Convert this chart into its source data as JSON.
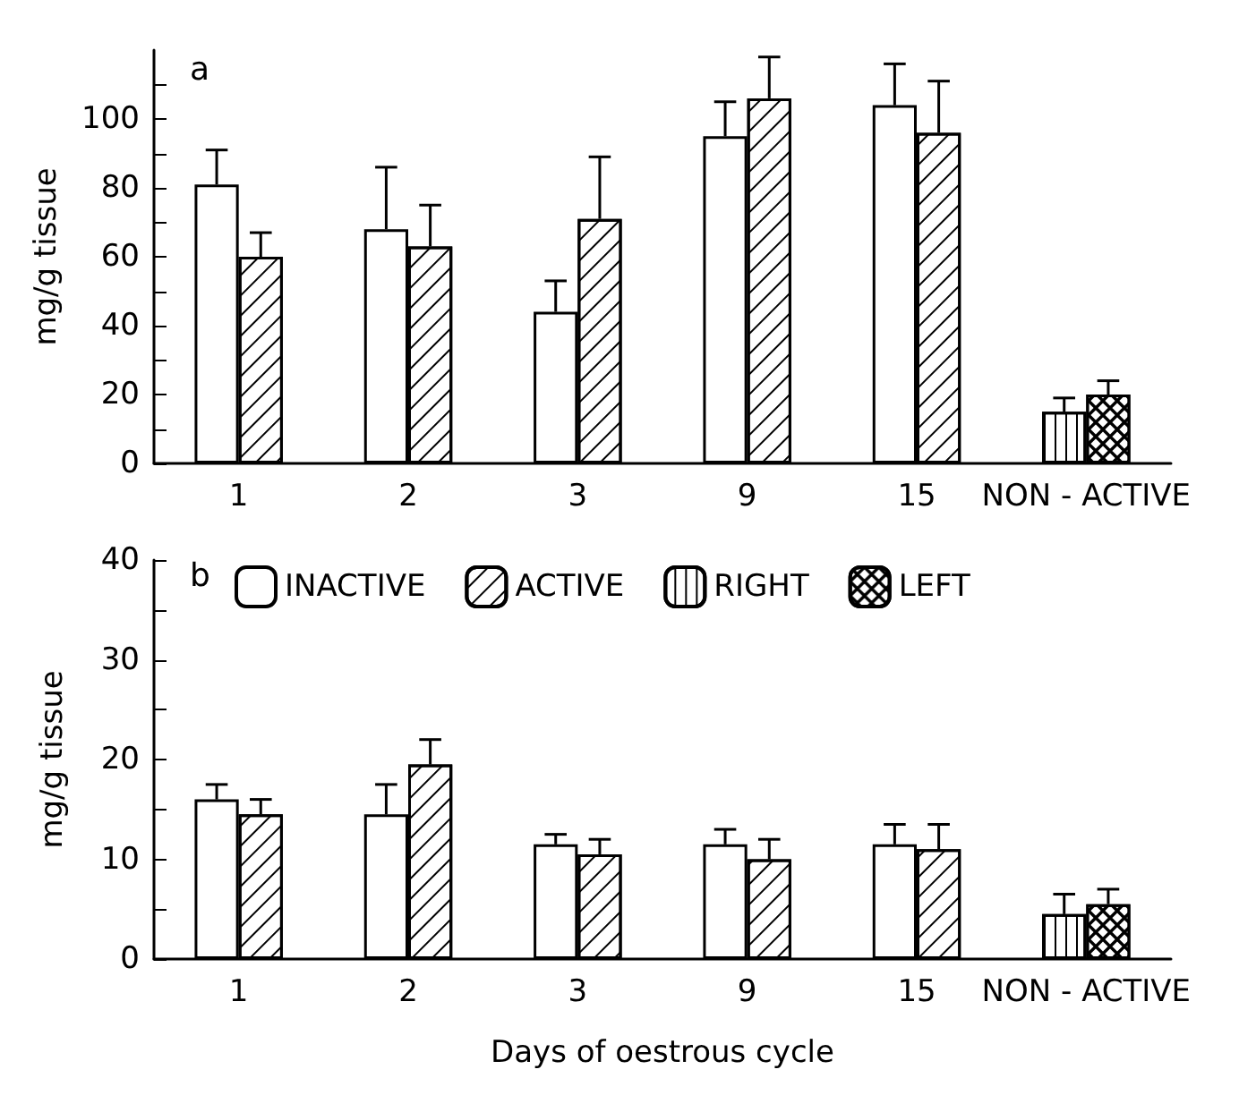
{
  "chart_data": [
    {
      "type": "bar",
      "annotations": [
        "a"
      ],
      "ylabel": "mg/g tissue",
      "categories": [
        "1",
        "2",
        "3",
        "9",
        "15",
        "NON - ACTIVE"
      ],
      "ylim": [
        0,
        120
      ],
      "yticks": [
        0,
        {
          "value": 10,
          "label": null
        },
        20,
        {
          "value": 30,
          "label": null
        },
        40,
        {
          "value": 50,
          "label": null
        },
        60,
        {
          "value": 70,
          "label": null
        },
        80,
        {
          "value": 90,
          "label": null
        },
        100,
        {
          "value": 110,
          "label": null
        }
      ],
      "legend": false,
      "grid": false,
      "series": [
        {
          "color": "#ffffff",
          "values": [
            81,
            68,
            44,
            95,
            104,
            null
          ],
          "errors": [
            [
              81,
              91
            ],
            [
              68,
              86
            ],
            [
              44,
              53
            ],
            [
              95,
              105
            ],
            [
              104,
              116
            ],
            null
          ]
        },
        {
          "color": "#ffffff",
          "values": [
            60,
            63,
            71,
            106,
            96,
            null
          ],
          "errors": [
            [
              60,
              67
            ],
            [
              63,
              75
            ],
            [
              71,
              89
            ],
            [
              106,
              118
            ],
            [
              96,
              111
            ],
            null
          ]
        },
        {
          "color": "#ffffff",
          "values": [
            null,
            null,
            null,
            null,
            null,
            15
          ],
          "errors": [
            null,
            null,
            null,
            null,
            null,
            [
              15,
              19
            ]
          ]
        },
        {
          "color": "#ffffff",
          "values": [
            null,
            null,
            null,
            null,
            null,
            20
          ],
          "errors": [
            null,
            null,
            null,
            null,
            null,
            [
              20,
              24
            ]
          ]
        }
      ]
    },
    {
      "type": "bar",
      "annotations": [
        "b"
      ],
      "ylabel": "mg/g tissue",
      "xlabel": "Days of oestrous cycle",
      "categories": [
        "1",
        "2",
        "3",
        "9",
        "15",
        "NON - ACTIVE"
      ],
      "ylim": [
        0,
        40
      ],
      "yticks": [
        0,
        {
          "value": 5,
          "label": null
        },
        10,
        {
          "value": 15,
          "label": null
        },
        20,
        {
          "value": 25,
          "label": null
        },
        30,
        {
          "value": 35,
          "label": null
        },
        40
      ],
      "legend": "top left",
      "grid": false,
      "series": [
        {
          "name": "INACTIVE",
          "color": "#ffffff",
          "values": [
            16,
            14.5,
            11.5,
            11.5,
            11.5,
            null
          ],
          "errors": [
            [
              16,
              17.5
            ],
            [
              14.5,
              17.5
            ],
            [
              11.5,
              12.5
            ],
            [
              11.5,
              13
            ],
            [
              11.5,
              13.5
            ],
            null
          ]
        },
        {
          "name": "ACTIVE",
          "color": "#ffffff",
          "values": [
            14.5,
            19.5,
            10.5,
            10,
            11,
            null
          ],
          "errors": [
            [
              14.5,
              16
            ],
            [
              19.5,
              22
            ],
            [
              10.5,
              12
            ],
            [
              10,
              12
            ],
            [
              11,
              13.5
            ],
            null
          ]
        },
        {
          "name": "RIGHT",
          "color": "#ffffff",
          "values": [
            null,
            null,
            null,
            null,
            null,
            4.5
          ],
          "errors": [
            null,
            null,
            null,
            null,
            null,
            [
              4.5,
              6.5
            ]
          ]
        },
        {
          "name": "LEFT",
          "color": "#ffffff",
          "values": [
            null,
            null,
            null,
            null,
            null,
            5.5
          ],
          "errors": [
            null,
            null,
            null,
            null,
            null,
            [
              5.5,
              7
            ]
          ]
        }
      ]
    }
  ]
}
